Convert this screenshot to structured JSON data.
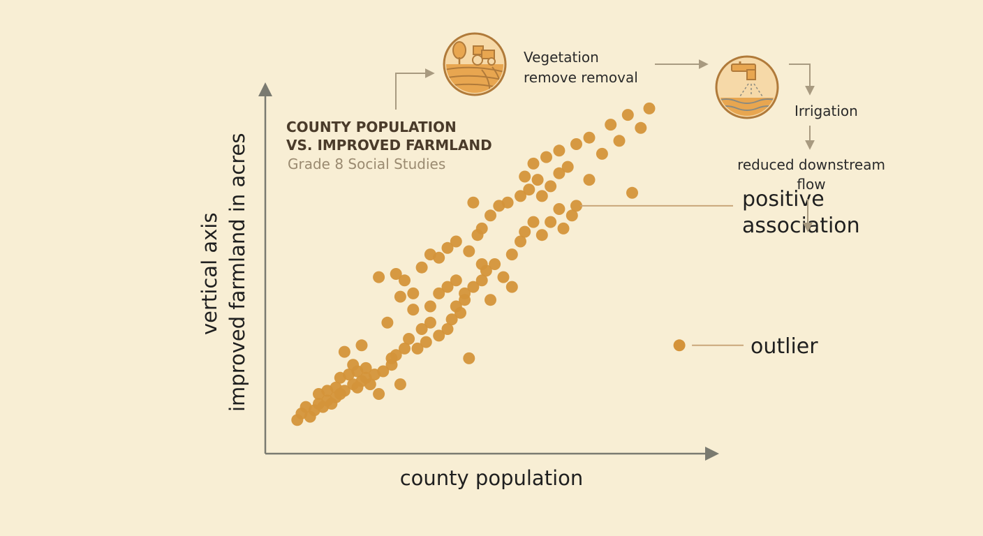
{
  "chart_data": {
    "type": "scatter",
    "title_lines": [
      "COUNTY POPULATION",
      "VS. IMPROVED FARMLAND"
    ],
    "subtitle": "Grade 8 Social Studies",
    "xlabel": "county population",
    "ylabel_lines": [
      "vertical axis",
      "improved farmland in acres"
    ],
    "xlim": [
      0,
      100
    ],
    "ylim": [
      0,
      100
    ],
    "grid": false,
    "point_color": "#d4933a",
    "points": [
      [
        5,
        5
      ],
      [
        6,
        7
      ],
      [
        8,
        6
      ],
      [
        7,
        9
      ],
      [
        9,
        8
      ],
      [
        10,
        10
      ],
      [
        11,
        9
      ],
      [
        12,
        11
      ],
      [
        13,
        10
      ],
      [
        14,
        12
      ],
      [
        10,
        13
      ],
      [
        12,
        14
      ],
      [
        14,
        15
      ],
      [
        15,
        13
      ],
      [
        16,
        14
      ],
      [
        18,
        16
      ],
      [
        19,
        15
      ],
      [
        20,
        17
      ],
      [
        21,
        18
      ],
      [
        22,
        16
      ],
      [
        15,
        18
      ],
      [
        17,
        19
      ],
      [
        19,
        20
      ],
      [
        21,
        21
      ],
      [
        23,
        19
      ],
      [
        25,
        20
      ],
      [
        27,
        22
      ],
      [
        28,
        25
      ],
      [
        30,
        27
      ],
      [
        31,
        30
      ],
      [
        33,
        27
      ],
      [
        35,
        29
      ],
      [
        34,
        33
      ],
      [
        36,
        35
      ],
      [
        38,
        31
      ],
      [
        40,
        33
      ],
      [
        41,
        36
      ],
      [
        43,
        38
      ],
      [
        42,
        40
      ],
      [
        44,
        42
      ],
      [
        36,
        40
      ],
      [
        38,
        44
      ],
      [
        40,
        46
      ],
      [
        42,
        48
      ],
      [
        44,
        44
      ],
      [
        46,
        46
      ],
      [
        48,
        48
      ],
      [
        49,
        51
      ],
      [
        51,
        53
      ],
      [
        53,
        49
      ],
      [
        32,
        44
      ],
      [
        30,
        48
      ],
      [
        28,
        50
      ],
      [
        34,
        52
      ],
      [
        36,
        56
      ],
      [
        38,
        55
      ],
      [
        40,
        58
      ],
      [
        42,
        60
      ],
      [
        45,
        57
      ],
      [
        47,
        62
      ],
      [
        55,
        56
      ],
      [
        57,
        60
      ],
      [
        58,
        63
      ],
      [
        60,
        66
      ],
      [
        62,
        62
      ],
      [
        64,
        66
      ],
      [
        66,
        70
      ],
      [
        67,
        64
      ],
      [
        69,
        68
      ],
      [
        70,
        71
      ],
      [
        48,
        64
      ],
      [
        50,
        68
      ],
      [
        52,
        71
      ],
      [
        54,
        72
      ],
      [
        57,
        74
      ],
      [
        59,
        76
      ],
      [
        61,
        79
      ],
      [
        64,
        77
      ],
      [
        66,
        81
      ],
      [
        68,
        83
      ],
      [
        63,
        86
      ],
      [
        66,
        88
      ],
      [
        70,
        90
      ],
      [
        73,
        92
      ],
      [
        76,
        87
      ],
      [
        78,
        96
      ],
      [
        80,
        91
      ],
      [
        82,
        99
      ],
      [
        85,
        95
      ],
      [
        87,
        101
      ],
      [
        58,
        80
      ],
      [
        60,
        84
      ],
      [
        62,
        74
      ],
      [
        46,
        72
      ],
      [
        50,
        42
      ],
      [
        24,
        49
      ],
      [
        20,
        28
      ],
      [
        24,
        13
      ],
      [
        27,
        24
      ],
      [
        29,
        16
      ],
      [
        18,
        22
      ],
      [
        16,
        26
      ],
      [
        26,
        35
      ],
      [
        32,
        39
      ],
      [
        29,
        43
      ],
      [
        45,
        24
      ],
      [
        48,
        53
      ],
      [
        55,
        46
      ],
      [
        73,
        79
      ],
      [
        83,
        75
      ]
    ],
    "annotations": [
      {
        "label_lines": [
          "positive",
          "association"
        ],
        "x": 68,
        "y": 71
      },
      {
        "label_lines": [
          "outlier"
        ],
        "x": 94,
        "y": 28
      }
    ]
  },
  "flow": {
    "step1_lines": [
      "Vegetation",
      "remove removal"
    ],
    "step2": "Irrigation",
    "step3_lines": [
      "reduced downstream",
      "flow"
    ]
  },
  "icons": {
    "farm": "tractor-field-icon",
    "irrigation": "faucet-water-icon"
  },
  "colors": {
    "background": "#f8eed4",
    "points": "#d4933a",
    "axis": "#7a7a70",
    "leader": "#c9a67a",
    "flow_arrow": "#a89a80",
    "icon_fill": "#e8a650",
    "icon_stroke": "#b07a3a"
  }
}
